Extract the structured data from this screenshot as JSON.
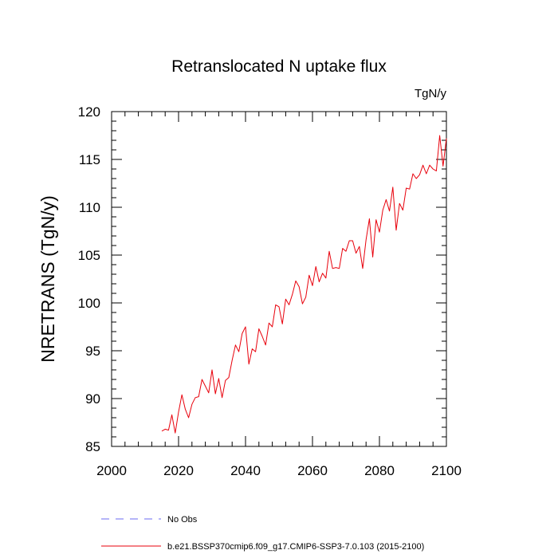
{
  "chart_data": {
    "type": "line",
    "title": "Retranslocated N uptake flux",
    "units": "TgN/y",
    "xlabel": "",
    "ylabel": "NRETRANS  (TgN/y)",
    "xlim": [
      2000,
      2100
    ],
    "ylim": [
      85,
      120
    ],
    "x_ticks": [
      "2000",
      "2020",
      "2040",
      "2060",
      "2080",
      "2100"
    ],
    "y_ticks": [
      "85",
      "90",
      "95",
      "100",
      "105",
      "110",
      "115",
      "120"
    ],
    "grid": false,
    "legend_position": "bottom",
    "legend": [
      {
        "label": "No Obs",
        "color": "#6b6bf0",
        "style": "dashed"
      },
      {
        "label": "b.e21.BSSP370cmip6.f09_g17.CMIP6-SSP3-7.0.103 (2015-2100)",
        "color": "#e8000b",
        "style": "solid"
      }
    ],
    "series": [
      {
        "name": "b.e21.BSSP370cmip6.f09_g17.CMIP6-SSP3-7.0.103 (2015-2100)",
        "color": "#e8000b",
        "x": [
          2015,
          2016,
          2017,
          2018,
          2019,
          2020,
          2021,
          2022,
          2023,
          2024,
          2025,
          2026,
          2027,
          2028,
          2029,
          2030,
          2031,
          2032,
          2033,
          2034,
          2035,
          2036,
          2037,
          2038,
          2039,
          2040,
          2041,
          2042,
          2043,
          2044,
          2045,
          2046,
          2047,
          2048,
          2049,
          2050,
          2051,
          2052,
          2053,
          2054,
          2055,
          2056,
          2057,
          2058,
          2059,
          2060,
          2061,
          2062,
          2063,
          2064,
          2065,
          2066,
          2067,
          2068,
          2069,
          2070,
          2071,
          2072,
          2073,
          2074,
          2075,
          2076,
          2077,
          2078,
          2079,
          2080,
          2081,
          2082,
          2083,
          2084,
          2085,
          2086,
          2087,
          2088,
          2089,
          2090,
          2091,
          2092,
          2093,
          2094,
          2095,
          2096,
          2097,
          2098,
          2099,
          2100
        ],
        "y": [
          86.6,
          86.8,
          86.7,
          88.3,
          86.4,
          88.6,
          90.4,
          88.9,
          88.0,
          89.4,
          90.1,
          90.2,
          92.0,
          91.3,
          90.6,
          93.0,
          90.5,
          92.1,
          90.1,
          91.9,
          92.2,
          94.0,
          95.6,
          94.9,
          96.8,
          97.5,
          93.6,
          95.2,
          94.9,
          97.3,
          96.5,
          95.6,
          97.9,
          97.5,
          99.8,
          99.6,
          97.8,
          100.4,
          99.8,
          100.9,
          102.3,
          101.7,
          99.9,
          100.6,
          102.9,
          101.8,
          103.8,
          102.2,
          103.1,
          102.6,
          105.4,
          103.6,
          103.7,
          103.6,
          105.7,
          105.4,
          106.5,
          106.5,
          105.2,
          105.9,
          103.6,
          106.6,
          108.8,
          104.8,
          108.7,
          107.4,
          109.7,
          110.8,
          109.6,
          112.1,
          107.6,
          110.4,
          109.7,
          112.0,
          111.9,
          113.5,
          113.0,
          113.4,
          114.4,
          113.5,
          114.4,
          114.0,
          113.8,
          117.5,
          114.3,
          117.2
        ]
      }
    ]
  }
}
